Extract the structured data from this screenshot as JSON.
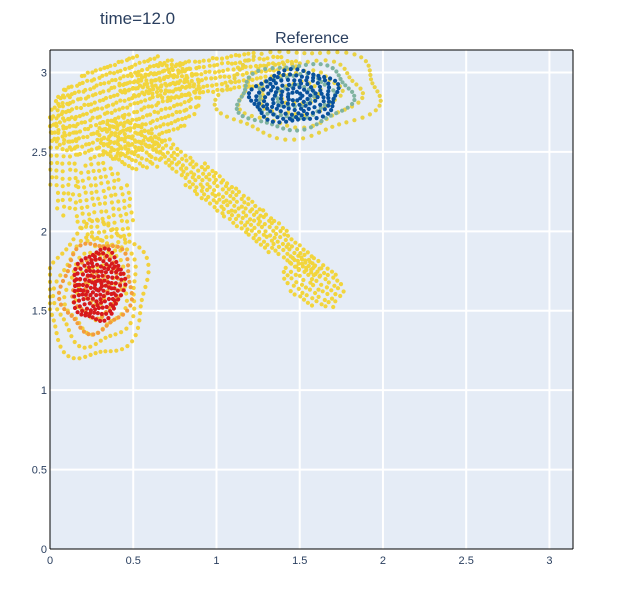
{
  "header": {
    "time_label": "time=12.0"
  },
  "chart_data": {
    "type": "scatter",
    "title": "Reference",
    "xlabel": "",
    "ylabel": "",
    "xlim": [
      0,
      3.14159
    ],
    "ylim": [
      0,
      3.14159
    ],
    "grid": true,
    "legend": "none",
    "x_ticks": [
      0,
      0.5,
      1,
      1.5,
      2,
      2.5,
      3
    ],
    "x_tick_labels": [
      "0",
      "0.5",
      "1",
      "1.5",
      "2",
      "2.5",
      "3"
    ],
    "y_ticks": [
      0,
      0.5,
      1,
      1.5,
      2,
      2.5,
      3
    ],
    "y_tick_labels": [
      "0",
      "0.5",
      "1",
      "1.5",
      "2",
      "2.5",
      "3"
    ],
    "colors": {
      "plot_bg": "#e5ecf6",
      "grid": "#ffffff",
      "text": "#2a3f5f",
      "background_particles": "#f2d53c",
      "warm_core": "#d7191c",
      "warm_ring": "#f39c3c",
      "cool_core": "#08519c",
      "cool_ring": "#7fb3a0"
    },
    "regions": [
      {
        "name": "upper-left fan",
        "kind": "ellipse",
        "cx": 0.45,
        "cy": 2.78,
        "rx": 0.48,
        "ry": 0.3,
        "angle": 20,
        "value": 0.5,
        "rows": 13,
        "cols": 40
      },
      {
        "name": "upper fan band",
        "kind": "ellipse",
        "cx": 0.95,
        "cy": 2.98,
        "rx": 0.55,
        "ry": 0.12,
        "angle": 8,
        "value": 0.5,
        "rows": 6,
        "cols": 40
      },
      {
        "name": "left column",
        "kind": "ellipse",
        "cx": 0.08,
        "cy": 2.5,
        "rx": 0.09,
        "ry": 0.42,
        "angle": 0,
        "value": 0.5,
        "rows": 18,
        "cols": 5
      },
      {
        "name": "mid left strip",
        "kind": "ellipse",
        "cx": 0.48,
        "cy": 2.55,
        "rx": 0.22,
        "ry": 0.14,
        "angle": -30,
        "value": 0.5,
        "rows": 7,
        "cols": 18
      },
      {
        "name": "lower left tongue",
        "kind": "ellipse",
        "cx": 0.32,
        "cy": 2.15,
        "rx": 0.18,
        "ry": 0.3,
        "angle": 10,
        "value": 0.5,
        "rows": 14,
        "cols": 10
      },
      {
        "name": "diagonal streak",
        "kind": "ellipse",
        "cx": 1.12,
        "cy": 2.15,
        "rx": 0.68,
        "ry": 0.1,
        "angle": -40,
        "value": 0.5,
        "rows": 7,
        "cols": 44
      },
      {
        "name": "streak tail",
        "kind": "ellipse",
        "cx": 1.58,
        "cy": 1.68,
        "rx": 0.2,
        "ry": 0.14,
        "angle": -35,
        "value": 0.5,
        "rows": 8,
        "cols": 12
      },
      {
        "name": "upper swirl halo",
        "kind": "swirl",
        "cx": 1.5,
        "cy": 2.87,
        "rx": 0.48,
        "ry": 0.27,
        "angle": 5,
        "value": 0.52,
        "rings": 4,
        "count": 60
      },
      {
        "name": "upper swirl ring",
        "kind": "swirl",
        "cx": 1.47,
        "cy": 2.85,
        "rx": 0.34,
        "ry": 0.2,
        "angle": 5,
        "value": 0.75,
        "rings": 3,
        "count": 52
      },
      {
        "name": "upper swirl core",
        "kind": "swirl",
        "cx": 1.47,
        "cy": 2.85,
        "rx": 0.26,
        "ry": 0.16,
        "angle": 5,
        "value": 1.0,
        "rings": 6,
        "count": 44
      },
      {
        "name": "lower swirl halo",
        "kind": "swirl",
        "cx": 0.28,
        "cy": 1.62,
        "rx": 0.3,
        "ry": 0.42,
        "angle": -8,
        "value": 0.48,
        "rings": 5,
        "count": 60
      },
      {
        "name": "lower swirl ring",
        "kind": "swirl",
        "cx": 0.28,
        "cy": 1.65,
        "rx": 0.21,
        "ry": 0.28,
        "angle": -8,
        "value": 0.25,
        "rings": 3,
        "count": 48
      },
      {
        "name": "lower swirl core",
        "kind": "swirl",
        "cx": 0.29,
        "cy": 1.66,
        "rx": 0.15,
        "ry": 0.22,
        "angle": -8,
        "value": 0.0,
        "rings": 7,
        "count": 40
      }
    ]
  }
}
